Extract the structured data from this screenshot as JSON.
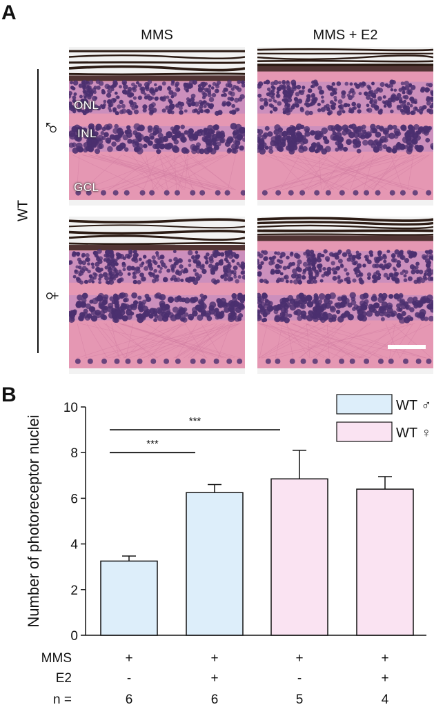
{
  "panel_a": {
    "letter": "A",
    "columns": [
      "MMS",
      "MMS + E2"
    ],
    "genotype": "WT",
    "rows": [
      {
        "symbol": "♂",
        "symbol_name": "male-symbol-icon"
      },
      {
        "symbol": "♀",
        "symbol_name": "female-symbol-icon"
      }
    ],
    "layer_labels": {
      "onl": "ONL",
      "inl": "INL",
      "gcl": "GCL"
    },
    "tissue_colors": {
      "background": "#f2f2f2",
      "stroma": "#e597b3",
      "nuclei": "#4b2f6f",
      "pigment": "#2c1b14"
    }
  },
  "panel_b": {
    "letter": "B",
    "legend": [
      {
        "label": "WT ♂",
        "color": "#ddeefa"
      },
      {
        "label": "WT ♀",
        "color": "#fae3f2"
      }
    ],
    "significance": [
      {
        "label": "***",
        "from": 0,
        "to": 1
      },
      {
        "label": "***",
        "from": 0,
        "to": 2
      }
    ],
    "table": {
      "row_labels": [
        "MMS",
        "E2",
        "n ="
      ],
      "rows": [
        [
          "+",
          "+",
          "+",
          "+"
        ],
        [
          "-",
          "+",
          "-",
          "+"
        ],
        [
          "6",
          "6",
          "5",
          "4"
        ]
      ]
    }
  },
  "chart_data": {
    "type": "bar",
    "categories": [
      "WT ♂ MMS",
      "WT ♂ MMS + E2",
      "WT ♀ MMS",
      "WT ♀ MMS + E2"
    ],
    "values": [
      3.25,
      6.25,
      6.85,
      6.4
    ],
    "errors": [
      0.22,
      0.35,
      1.25,
      0.55
    ],
    "bar_colors": [
      "#ddeefa",
      "#ddeefa",
      "#fae3f2",
      "#fae3f2"
    ],
    "ylabel": "Number of photoreceptor nuclei",
    "ylim": [
      0,
      10
    ],
    "yticks": [
      "0",
      "2",
      "4",
      "6",
      "8",
      "10"
    ],
    "grid": false,
    "legend_position": "top-right"
  }
}
